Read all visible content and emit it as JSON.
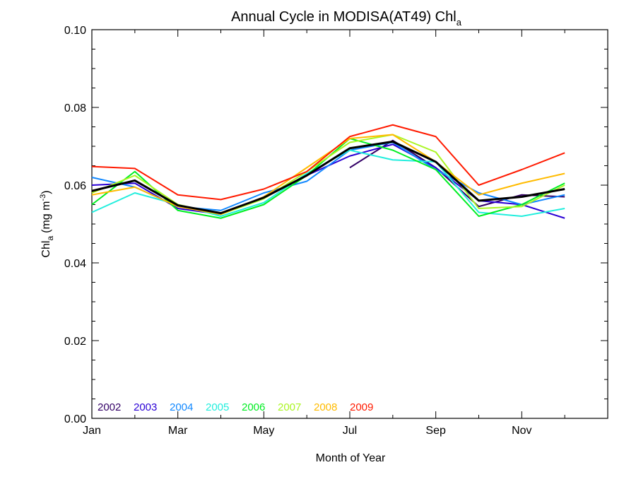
{
  "chart_data": {
    "type": "line",
    "title": "Annual Cycle in MODISA(AT49) Chl",
    "title_subscript": "a",
    "xlabel": "Month of Year",
    "ylabel": "Chl",
    "ylabel_subscript": "a",
    "ylabel_units": "(mg m",
    "ylabel_units_sup": "-3",
    "ylabel_units_close": ")",
    "xlim": [
      1,
      13
    ],
    "ylim": [
      0.0,
      0.1
    ],
    "x_ticks": [
      {
        "value": 1,
        "label": "Jan"
      },
      {
        "value": 3,
        "label": "Mar"
      },
      {
        "value": 5,
        "label": "May"
      },
      {
        "value": 7,
        "label": "Jul"
      },
      {
        "value": 9,
        "label": "Sep"
      },
      {
        "value": 11,
        "label": "Nov"
      }
    ],
    "y_ticks": [
      {
        "value": 0.0,
        "label": "0.00"
      },
      {
        "value": 0.02,
        "label": "0.02"
      },
      {
        "value": 0.04,
        "label": "0.04"
      },
      {
        "value": 0.06,
        "label": "0.06"
      },
      {
        "value": 0.08,
        "label": "0.08"
      },
      {
        "value": 0.1,
        "label": "0.10"
      }
    ],
    "legend_position": "bottom-left",
    "grid": false,
    "months": [
      1,
      2,
      3,
      4,
      5,
      6,
      7,
      8,
      9,
      10,
      11,
      12
    ],
    "series": [
      {
        "name": "2002",
        "color": "#330066",
        "values": [
          null,
          null,
          null,
          null,
          null,
          null,
          0.0645,
          0.0715,
          0.0645,
          0.0545,
          0.0575,
          0.057
        ]
      },
      {
        "name": "2003",
        "color": "#2a00d5",
        "values": [
          0.06,
          0.0605,
          0.054,
          0.0525,
          0.057,
          0.0625,
          0.0675,
          0.0705,
          0.0645,
          0.056,
          0.055,
          0.0515
        ]
      },
      {
        "name": "2004",
        "color": "#1188ff",
        "values": [
          0.062,
          0.0595,
          0.0545,
          0.0535,
          0.058,
          0.061,
          0.069,
          0.071,
          0.064,
          0.058,
          0.055,
          0.0575
        ]
      },
      {
        "name": "2005",
        "color": "#22eedd",
        "values": [
          0.053,
          0.058,
          0.055,
          0.052,
          0.0555,
          0.063,
          0.069,
          0.0665,
          0.066,
          0.053,
          0.052,
          0.054
        ]
      },
      {
        "name": "2006",
        "color": "#00ee22",
        "values": [
          0.055,
          0.0635,
          0.0535,
          0.0515,
          0.055,
          0.0625,
          0.072,
          0.069,
          0.064,
          0.052,
          0.055,
          0.0605
        ]
      },
      {
        "name": "2007",
        "color": "#aaf522",
        "values": [
          0.058,
          0.0625,
          0.055,
          0.0525,
          0.0565,
          0.0635,
          0.071,
          0.073,
          0.0685,
          0.054,
          0.0545,
          0.06
        ]
      },
      {
        "name": "2008",
        "color": "#ffbb00",
        "values": [
          0.0575,
          0.0595,
          0.0545,
          0.0525,
          0.057,
          0.0645,
          0.072,
          0.073,
          0.066,
          0.0575,
          0.0605,
          0.063
        ]
      },
      {
        "name": "2009",
        "color": "#ff1a00",
        "values": [
          0.0648,
          0.0643,
          0.0575,
          0.0563,
          0.059,
          0.0635,
          0.0725,
          0.0755,
          0.0725,
          0.06,
          0.064,
          0.0683
        ]
      },
      {
        "name": "",
        "color": "#000000",
        "values": [
          0.0585,
          0.0612,
          0.0548,
          0.0528,
          0.0568,
          0.0625,
          0.0695,
          0.0712,
          0.066,
          0.056,
          0.057,
          0.059
        ]
      }
    ]
  }
}
